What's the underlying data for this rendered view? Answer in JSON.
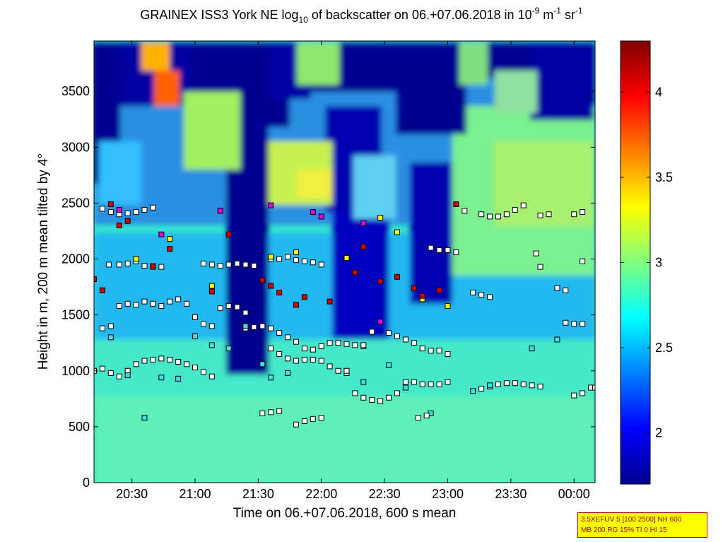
{
  "title": {
    "part1": "GRAINEX ISS3 York NE log",
    "sub": "10",
    "part2": " of backscatter on 06.+07.06.2018 in 10",
    "sup1": "-9",
    "part3": " m",
    "sup2": "-1",
    "part4": " sr",
    "sup3": "-1"
  },
  "info_box": {
    "line1": "3.5XEFUV 5 [100 2500] NH 600",
    "line2": "MB 200 RG 15% TI 0 HI 15"
  },
  "chart_data": {
    "type": "heatmap",
    "xlabel": "Time on 06.+07.06.2018, 600 s mean",
    "ylabel": "Height in m, 200 m mean tilted by 4°",
    "x_range_minutes": [
      1212,
      1450
    ],
    "ylim": [
      0,
      3950
    ],
    "x_ticks": [
      {
        "minute": 1230,
        "label": "20:30"
      },
      {
        "minute": 1260,
        "label": "21:00"
      },
      {
        "minute": 1290,
        "label": "21:30"
      },
      {
        "minute": 1320,
        "label": "22:00"
      },
      {
        "minute": 1350,
        "label": "22:30"
      },
      {
        "minute": 1380,
        "label": "23:00"
      },
      {
        "minute": 1410,
        "label": "23:30"
      },
      {
        "minute": 1440,
        "label": "00:00"
      }
    ],
    "y_ticks": [
      0,
      500,
      1000,
      1500,
      2000,
      2500,
      3000,
      3500
    ],
    "colorbar": {
      "range": [
        1.7,
        4.3
      ],
      "ticks": [
        {
          "value": 2.0,
          "label": "2"
        },
        {
          "value": 2.5,
          "label": "2.5"
        },
        {
          "value": 3.0,
          "label": "3"
        },
        {
          "value": 3.5,
          "label": "3.5"
        },
        {
          "value": 4.0,
          "label": "4"
        }
      ],
      "colormap": "jet"
    },
    "layer_marker_colors": {
      "white": "#ffffff",
      "yellow": "#ffff00",
      "red": "#d40000",
      "magenta": "#e000e0",
      "cyan": "#40e0e0"
    },
    "layers": [
      {
        "name": "layer-1",
        "color": "white",
        "points": [
          [
            1212,
            1000
          ],
          [
            1216,
            1020
          ],
          [
            1220,
            980
          ],
          [
            1224,
            950
          ],
          [
            1228,
            1000
          ],
          [
            1232,
            1060
          ],
          [
            1236,
            1090
          ],
          [
            1240,
            1100
          ],
          [
            1244,
            1110
          ],
          [
            1248,
            1100
          ],
          [
            1252,
            1080
          ],
          [
            1256,
            1060
          ],
          [
            1260,
            1030
          ],
          [
            1264,
            990
          ],
          [
            1268,
            950
          ]
        ]
      },
      {
        "name": "layer-2",
        "color": "white",
        "points": [
          [
            1296,
            1200
          ],
          [
            1300,
            1150
          ],
          [
            1304,
            1110
          ],
          [
            1308,
            1090
          ],
          [
            1312,
            1100
          ],
          [
            1316,
            1100
          ],
          [
            1320,
            1090
          ],
          [
            1324,
            1040
          ],
          [
            1328,
            1000
          ],
          [
            1332,
            980
          ]
        ]
      },
      {
        "name": "layer-3",
        "color": "white",
        "points": [
          [
            1336,
            800
          ],
          [
            1340,
            760
          ],
          [
            1344,
            740
          ],
          [
            1348,
            730
          ],
          [
            1352,
            760
          ],
          [
            1356,
            800
          ],
          [
            1360,
            900
          ],
          [
            1364,
            900
          ],
          [
            1368,
            880
          ],
          [
            1372,
            880
          ],
          [
            1376,
            880
          ],
          [
            1380,
            900
          ]
        ]
      },
      {
        "name": "layer-4",
        "color": "white",
        "points": [
          [
            1396,
            840
          ],
          [
            1400,
            860
          ],
          [
            1404,
            880
          ],
          [
            1408,
            890
          ],
          [
            1412,
            890
          ],
          [
            1416,
            880
          ],
          [
            1420,
            870
          ],
          [
            1424,
            860
          ]
        ]
      },
      {
        "name": "layer-5",
        "color": "white",
        "points": [
          [
            1440,
            780
          ],
          [
            1444,
            800
          ],
          [
            1448,
            850
          ],
          [
            1450,
            850
          ]
        ]
      },
      {
        "name": "layer-6",
        "color": "white",
        "points": [
          [
            1284,
            1380
          ],
          [
            1288,
            1390
          ],
          [
            1292,
            1400
          ],
          [
            1296,
            1380
          ],
          [
            1300,
            1340
          ],
          [
            1304,
            1300
          ],
          [
            1308,
            1260
          ],
          [
            1312,
            1200
          ],
          [
            1316,
            1190
          ],
          [
            1320,
            1220
          ],
          [
            1324,
            1250
          ],
          [
            1328,
            1250
          ],
          [
            1332,
            1240
          ],
          [
            1336,
            1230
          ],
          [
            1340,
            1220
          ]
        ]
      },
      {
        "name": "layer-7",
        "color": "white",
        "points": [
          [
            1352,
            1340
          ],
          [
            1356,
            1310
          ],
          [
            1360,
            1280
          ],
          [
            1364,
            1250
          ],
          [
            1368,
            1200
          ],
          [
            1372,
            1180
          ],
          [
            1376,
            1180
          ],
          [
            1380,
            1150
          ]
        ]
      },
      {
        "name": "layer-8",
        "color": "white",
        "points": [
          [
            1216,
            1380
          ],
          [
            1220,
            1400
          ],
          [
            1224,
            1580
          ],
          [
            1228,
            1600
          ],
          [
            1232,
            1590
          ],
          [
            1236,
            1620
          ],
          [
            1240,
            1600
          ],
          [
            1244,
            1580
          ],
          [
            1248,
            1620
          ],
          [
            1252,
            1640
          ],
          [
            1256,
            1600
          ]
        ]
      },
      {
        "name": "layer-9",
        "color": "white",
        "points": [
          [
            1260,
            1480
          ],
          [
            1264,
            1420
          ],
          [
            1268,
            1400
          ],
          [
            1272,
            1560
          ],
          [
            1276,
            1580
          ],
          [
            1280,
            1570
          ],
          [
            1284,
            1520
          ]
        ]
      },
      {
        "name": "layer-10",
        "color": "white",
        "points": [
          [
            1392,
            1700
          ],
          [
            1396,
            1680
          ],
          [
            1400,
            1660
          ]
        ]
      },
      {
        "name": "layer-11",
        "color": "white",
        "points": [
          [
            1436,
            1430
          ],
          [
            1440,
            1420
          ],
          [
            1444,
            1420
          ]
        ]
      },
      {
        "name": "layer-12",
        "color": "white",
        "points": [
          [
            1219,
            1950
          ],
          [
            1224,
            1950
          ],
          [
            1228,
            1960
          ],
          [
            1232,
            1980
          ],
          [
            1236,
            1940
          ],
          [
            1240,
            1940
          ],
          [
            1244,
            1930
          ]
        ]
      },
      {
        "name": "layer-13",
        "color": "white",
        "points": [
          [
            1264,
            1960
          ],
          [
            1268,
            1950
          ],
          [
            1272,
            1940
          ],
          [
            1276,
            1950
          ],
          [
            1280,
            1960
          ],
          [
            1284,
            1950
          ],
          [
            1288,
            1940
          ]
        ]
      },
      {
        "name": "layer-14",
        "color": "white",
        "points": [
          [
            1296,
            2000
          ],
          [
            1300,
            2000
          ],
          [
            1304,
            2020
          ],
          [
            1308,
            1990
          ],
          [
            1312,
            1980
          ],
          [
            1316,
            1970
          ],
          [
            1320,
            1950
          ]
        ]
      },
      {
        "name": "layer-15",
        "color": "white",
        "points": [
          [
            1216,
            2450
          ],
          [
            1220,
            2420
          ],
          [
            1224,
            2400
          ],
          [
            1228,
            2410
          ],
          [
            1232,
            2420
          ],
          [
            1236,
            2440
          ],
          [
            1240,
            2460
          ]
        ]
      },
      {
        "name": "layer-16",
        "color": "white",
        "points": [
          [
            1388,
            2430
          ],
          [
            1396,
            2400
          ],
          [
            1400,
            2380
          ],
          [
            1404,
            2380
          ],
          [
            1408,
            2400
          ],
          [
            1412,
            2440
          ],
          [
            1416,
            2480
          ]
        ]
      },
      {
        "name": "layer-17",
        "color": "white",
        "points": [
          [
            1424,
            2390
          ],
          [
            1428,
            2400
          ],
          [
            1440,
            2400
          ],
          [
            1444,
            2420
          ]
        ]
      },
      {
        "name": "layer-18",
        "color": "white",
        "points": [
          [
            1292,
            620
          ],
          [
            1296,
            630
          ],
          [
            1300,
            640
          ],
          [
            1308,
            520
          ],
          [
            1312,
            550
          ],
          [
            1316,
            570
          ],
          [
            1320,
            580
          ]
        ]
      },
      {
        "name": "layer-19",
        "color": "white",
        "points": [
          [
            1372,
            2100
          ],
          [
            1376,
            2080
          ],
          [
            1380,
            2080
          ],
          [
            1384,
            2060
          ]
        ]
      },
      {
        "name": "layer-20",
        "color": "yellow",
        "points": [
          [
            1232,
            2000
          ],
          [
            1248,
            2180
          ],
          [
            1268,
            1760
          ],
          [
            1296,
            2020
          ],
          [
            1308,
            2060
          ],
          [
            1332,
            2010
          ],
          [
            1348,
            2370
          ],
          [
            1356,
            2240
          ],
          [
            1368,
            1640
          ],
          [
            1380,
            1580
          ]
        ]
      },
      {
        "name": "layer-21",
        "color": "red",
        "points": [
          [
            1212,
            1820
          ],
          [
            1216,
            1720
          ],
          [
            1220,
            2490
          ],
          [
            1224,
            2300
          ],
          [
            1228,
            2340
          ],
          [
            1240,
            1930
          ],
          [
            1248,
            2090
          ],
          [
            1268,
            1710
          ],
          [
            1276,
            2220
          ],
          [
            1292,
            1810
          ],
          [
            1296,
            1760
          ],
          [
            1300,
            1700
          ],
          [
            1308,
            1590
          ],
          [
            1312,
            1660
          ],
          [
            1324,
            1620
          ],
          [
            1336,
            1880
          ],
          [
            1340,
            2110
          ],
          [
            1348,
            1800
          ],
          [
            1356,
            1840
          ],
          [
            1364,
            1740
          ],
          [
            1368,
            1670
          ],
          [
            1376,
            1720
          ],
          [
            1384,
            2490
          ]
        ]
      },
      {
        "name": "layer-22",
        "color": "magenta",
        "points": [
          [
            1224,
            2440
          ],
          [
            1244,
            2220
          ],
          [
            1272,
            2430
          ],
          [
            1296,
            2480
          ],
          [
            1316,
            2420
          ],
          [
            1320,
            2380
          ],
          [
            1340,
            2320
          ],
          [
            1348,
            1440
          ]
        ]
      },
      {
        "name": "layer-23",
        "color": "cyan",
        "points": [
          [
            1220,
            1300
          ],
          [
            1228,
            960
          ],
          [
            1236,
            580
          ],
          [
            1244,
            940
          ],
          [
            1252,
            930
          ],
          [
            1260,
            1310
          ],
          [
            1268,
            1230
          ],
          [
            1276,
            1200
          ],
          [
            1284,
            1400
          ],
          [
            1292,
            1060
          ],
          [
            1296,
            940
          ],
          [
            1304,
            980
          ],
          [
            1340,
            900
          ],
          [
            1352,
            1050
          ],
          [
            1360,
            850
          ],
          [
            1372,
            620
          ],
          [
            1392,
            820
          ],
          [
            1400,
            870
          ],
          [
            1420,
            1200
          ],
          [
            1432,
            1280
          ]
        ]
      },
      {
        "name": "layer-24",
        "color": "white",
        "points": [
          [
            1422,
            2050
          ],
          [
            1424,
            1930
          ],
          [
            1432,
            1740
          ],
          [
            1436,
            1720
          ],
          [
            1444,
            1980
          ],
          [
            1370,
            600
          ],
          [
            1366,
            580
          ],
          [
            1340,
            1230
          ],
          [
            1332,
            1000
          ],
          [
            1344,
            1350
          ]
        ]
      }
    ]
  }
}
